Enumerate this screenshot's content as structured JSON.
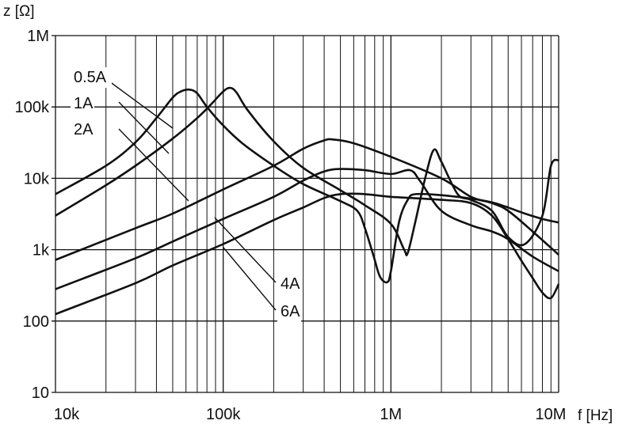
{
  "chart_data": {
    "type": "line",
    "title": "",
    "xlabel": "f [Hz]",
    "ylabel": "z [Ω]",
    "x_scale": "log",
    "y_scale": "log",
    "xlim": [
      10000,
      10000000
    ],
    "ylim": [
      10,
      1000000
    ],
    "grid": true,
    "x_ticks": [
      {
        "value": 10000,
        "label": "10k"
      },
      {
        "value": 100000,
        "label": "100k"
      },
      {
        "value": 1000000,
        "label": "1M"
      },
      {
        "value": 10000000,
        "label": "10M"
      }
    ],
    "y_ticks": [
      {
        "value": 10,
        "label": "10"
      },
      {
        "value": 100,
        "label": "100"
      },
      {
        "value": 1000,
        "label": "1k"
      },
      {
        "value": 10000,
        "label": "10k"
      },
      {
        "value": 100000,
        "label": "100k"
      },
      {
        "value": 1000000,
        "label": "1M"
      }
    ],
    "series": [
      {
        "name": "0.5A",
        "points": [
          [
            10000,
            6000
          ],
          [
            20000,
            15000
          ],
          [
            30000,
            32000
          ],
          [
            40000,
            70000
          ],
          [
            50000,
            135000
          ],
          [
            56000,
            165000
          ],
          [
            63000,
            175000
          ],
          [
            70000,
            155000
          ],
          [
            80000,
            100000
          ],
          [
            100000,
            55000
          ],
          [
            130000,
            31000
          ],
          [
            200000,
            15000
          ],
          [
            300000,
            8300
          ],
          [
            500000,
            4800
          ],
          [
            630000,
            3500
          ],
          [
            700000,
            2000
          ],
          [
            790000,
            800
          ],
          [
            860000,
            420
          ],
          [
            950000,
            350
          ],
          [
            1000000,
            500
          ],
          [
            1120000,
            2500
          ],
          [
            1260000,
            5000
          ],
          [
            1400000,
            6000
          ],
          [
            2000000,
            5800
          ],
          [
            3000000,
            5200
          ],
          [
            4000000,
            4600
          ],
          [
            5000000,
            3900
          ],
          [
            6300000,
            3200
          ],
          [
            8000000,
            2700
          ],
          [
            10000000,
            2400
          ]
        ]
      },
      {
        "name": "1A",
        "points": [
          [
            10000,
            3000
          ],
          [
            20000,
            8000
          ],
          [
            30000,
            15000
          ],
          [
            50000,
            36000
          ],
          [
            70000,
            70000
          ],
          [
            85000,
            110000
          ],
          [
            100000,
            165000
          ],
          [
            110000,
            185000
          ],
          [
            120000,
            160000
          ],
          [
            140000,
            90000
          ],
          [
            200000,
            33000
          ],
          [
            300000,
            14000
          ],
          [
            500000,
            6800
          ],
          [
            700000,
            4200
          ],
          [
            1000000,
            2300
          ],
          [
            1200000,
            1000
          ],
          [
            1260000,
            900
          ],
          [
            1400000,
            2500
          ],
          [
            1600000,
            10000
          ],
          [
            1800000,
            25000
          ],
          [
            2000000,
            17000
          ],
          [
            2500000,
            6000
          ],
          [
            3000000,
            5000
          ],
          [
            4000000,
            3500
          ],
          [
            5000000,
            1500
          ],
          [
            6300000,
            1200
          ],
          [
            8000000,
            3000
          ],
          [
            9000000,
            15000
          ],
          [
            10000000,
            18000
          ]
        ]
      },
      {
        "name": "2A",
        "points": [
          [
            10000,
            720
          ],
          [
            30000,
            2000
          ],
          [
            50000,
            3200
          ],
          [
            100000,
            7000
          ],
          [
            200000,
            15000
          ],
          [
            300000,
            26000
          ],
          [
            400000,
            34000
          ],
          [
            450000,
            35000
          ],
          [
            600000,
            31000
          ],
          [
            1000000,
            20000
          ],
          [
            2000000,
            10000
          ],
          [
            3000000,
            5500
          ],
          [
            4000000,
            4500
          ],
          [
            5000000,
            3500
          ],
          [
            7000000,
            1800
          ],
          [
            10000000,
            850
          ]
        ]
      },
      {
        "name": "4A",
        "points": [
          [
            10000,
            280
          ],
          [
            30000,
            760
          ],
          [
            50000,
            1300
          ],
          [
            100000,
            2700
          ],
          [
            200000,
            5500
          ],
          [
            300000,
            9300
          ],
          [
            400000,
            12500
          ],
          [
            500000,
            13500
          ],
          [
            700000,
            13000
          ],
          [
            1000000,
            11500
          ],
          [
            1300000,
            13000
          ],
          [
            1500000,
            9000
          ],
          [
            2000000,
            3500
          ],
          [
            3000000,
            2200
          ],
          [
            4000000,
            1800
          ],
          [
            5000000,
            1400
          ],
          [
            7000000,
            800
          ],
          [
            10000000,
            500
          ]
        ]
      },
      {
        "name": "6A",
        "points": [
          [
            10000,
            125
          ],
          [
            30000,
            340
          ],
          [
            50000,
            600
          ],
          [
            100000,
            1200
          ],
          [
            200000,
            2600
          ],
          [
            300000,
            3900
          ],
          [
            400000,
            5300
          ],
          [
            500000,
            6000
          ],
          [
            700000,
            6000
          ],
          [
            1000000,
            5500
          ],
          [
            2000000,
            5000
          ],
          [
            3000000,
            4500
          ],
          [
            4000000,
            3000
          ],
          [
            5000000,
            1400
          ],
          [
            6000000,
            700
          ],
          [
            7000000,
            400
          ],
          [
            8000000,
            250
          ],
          [
            9000000,
            210
          ],
          [
            10000000,
            330
          ]
        ]
      }
    ],
    "labels": [
      {
        "text": "0.5A",
        "series": "0.5A"
      },
      {
        "text": "1A",
        "series": "1A"
      },
      {
        "text": "2A",
        "series": "2A"
      },
      {
        "text": "4A",
        "series": "4A"
      },
      {
        "text": "6A",
        "series": "6A"
      }
    ]
  }
}
